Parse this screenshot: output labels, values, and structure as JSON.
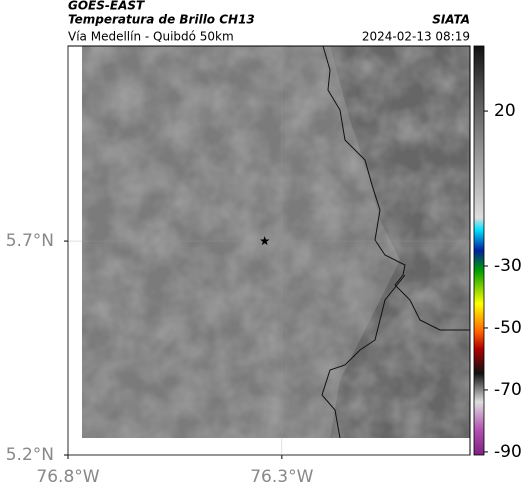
{
  "header": {
    "satellite": "GOES-EAST",
    "title": "Temperatura de Brillo CH13",
    "agency": "SIATA",
    "subtitle": "Vía Medellín - Quibdó 50km",
    "datetime": "2024-02-13 08:19"
  },
  "map": {
    "xlim": [
      -76.8,
      -75.86
    ],
    "ylim": [
      5.2,
      6.156
    ],
    "xticks": [
      {
        "value": -76.8,
        "label": "76.8°W"
      },
      {
        "value": -76.3,
        "label": "76.3°W"
      }
    ],
    "yticks": [
      {
        "value": 5.2,
        "label": "5.2°N"
      },
      {
        "value": 5.7,
        "label": "5.7°N"
      }
    ],
    "grid": true,
    "marker": {
      "lon": -76.34,
      "lat": 5.7
    }
  },
  "colorbar": {
    "lim": [
      -91,
      41
    ],
    "ticks": [
      20,
      -30,
      -50,
      -70,
      -90
    ]
  }
}
